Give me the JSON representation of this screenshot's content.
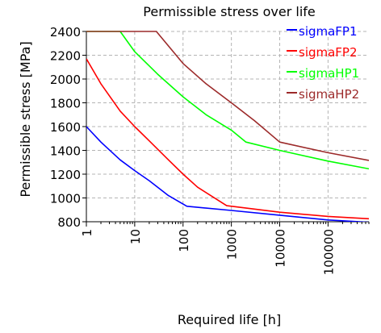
{
  "chart_data": {
    "type": "line",
    "title": "Permissible stress over life",
    "xlabel": "Required life [h]",
    "ylabel": "Permissible stress [MPa]",
    "x_scale": "log",
    "xlim": [
      1,
      700000
    ],
    "ylim": [
      800,
      2400
    ],
    "x_ticks": [
      {
        "value": 1,
        "label": "1"
      },
      {
        "value": 10,
        "label": "10"
      },
      {
        "value": 100,
        "label": "100"
      },
      {
        "value": 1000,
        "label": "1000"
      },
      {
        "value": 10000,
        "label": "10000"
      },
      {
        "value": 100000,
        "label": "100000"
      }
    ],
    "y_ticks": [
      {
        "value": 800,
        "label": "800"
      },
      {
        "value": 1000,
        "label": "1000"
      },
      {
        "value": 1200,
        "label": "1200"
      },
      {
        "value": 1400,
        "label": "1400"
      },
      {
        "value": 1600,
        "label": "1600"
      },
      {
        "value": 1800,
        "label": "1800"
      },
      {
        "value": 2000,
        "label": "2000"
      },
      {
        "value": 2200,
        "label": "2200"
      },
      {
        "value": 2400,
        "label": "2400"
      }
    ],
    "grid": true,
    "legend_position": "top-right",
    "series": [
      {
        "name": "sigmaFP1",
        "color": "#0000ff",
        "points": [
          [
            1,
            1600
          ],
          [
            2,
            1470
          ],
          [
            5,
            1320
          ],
          [
            10,
            1230
          ],
          [
            20,
            1145
          ],
          [
            50,
            1020
          ],
          [
            120,
            930
          ],
          [
            1000,
            895
          ],
          [
            10000,
            855
          ],
          [
            100000,
            815
          ],
          [
            700000,
            795
          ]
        ]
      },
      {
        "name": "sigmaFP2",
        "color": "#ff0000",
        "points": [
          [
            1,
            2170
          ],
          [
            2,
            1960
          ],
          [
            5,
            1730
          ],
          [
            10,
            1600
          ],
          [
            20,
            1480
          ],
          [
            50,
            1320
          ],
          [
            100,
            1200
          ],
          [
            200,
            1090
          ],
          [
            800,
            935
          ],
          [
            10000,
            880
          ],
          [
            100000,
            845
          ],
          [
            700000,
            825
          ]
        ]
      },
      {
        "name": "sigmaHP1",
        "color": "#00ff00",
        "points": [
          [
            1,
            2400
          ],
          [
            5,
            2400
          ],
          [
            10,
            2230
          ],
          [
            30,
            2040
          ],
          [
            100,
            1850
          ],
          [
            300,
            1700
          ],
          [
            1000,
            1570
          ],
          [
            2000,
            1470
          ],
          [
            10000,
            1400
          ],
          [
            100000,
            1310
          ],
          [
            700000,
            1245
          ]
        ]
      },
      {
        "name": "sigmaHP2",
        "color": "#9c2a2a",
        "points": [
          [
            1,
            2400
          ],
          [
            28,
            2400
          ],
          [
            100,
            2130
          ],
          [
            300,
            1960
          ],
          [
            1000,
            1800
          ],
          [
            3000,
            1650
          ],
          [
            10000,
            1470
          ],
          [
            100000,
            1380
          ],
          [
            700000,
            1315
          ]
        ]
      }
    ]
  }
}
